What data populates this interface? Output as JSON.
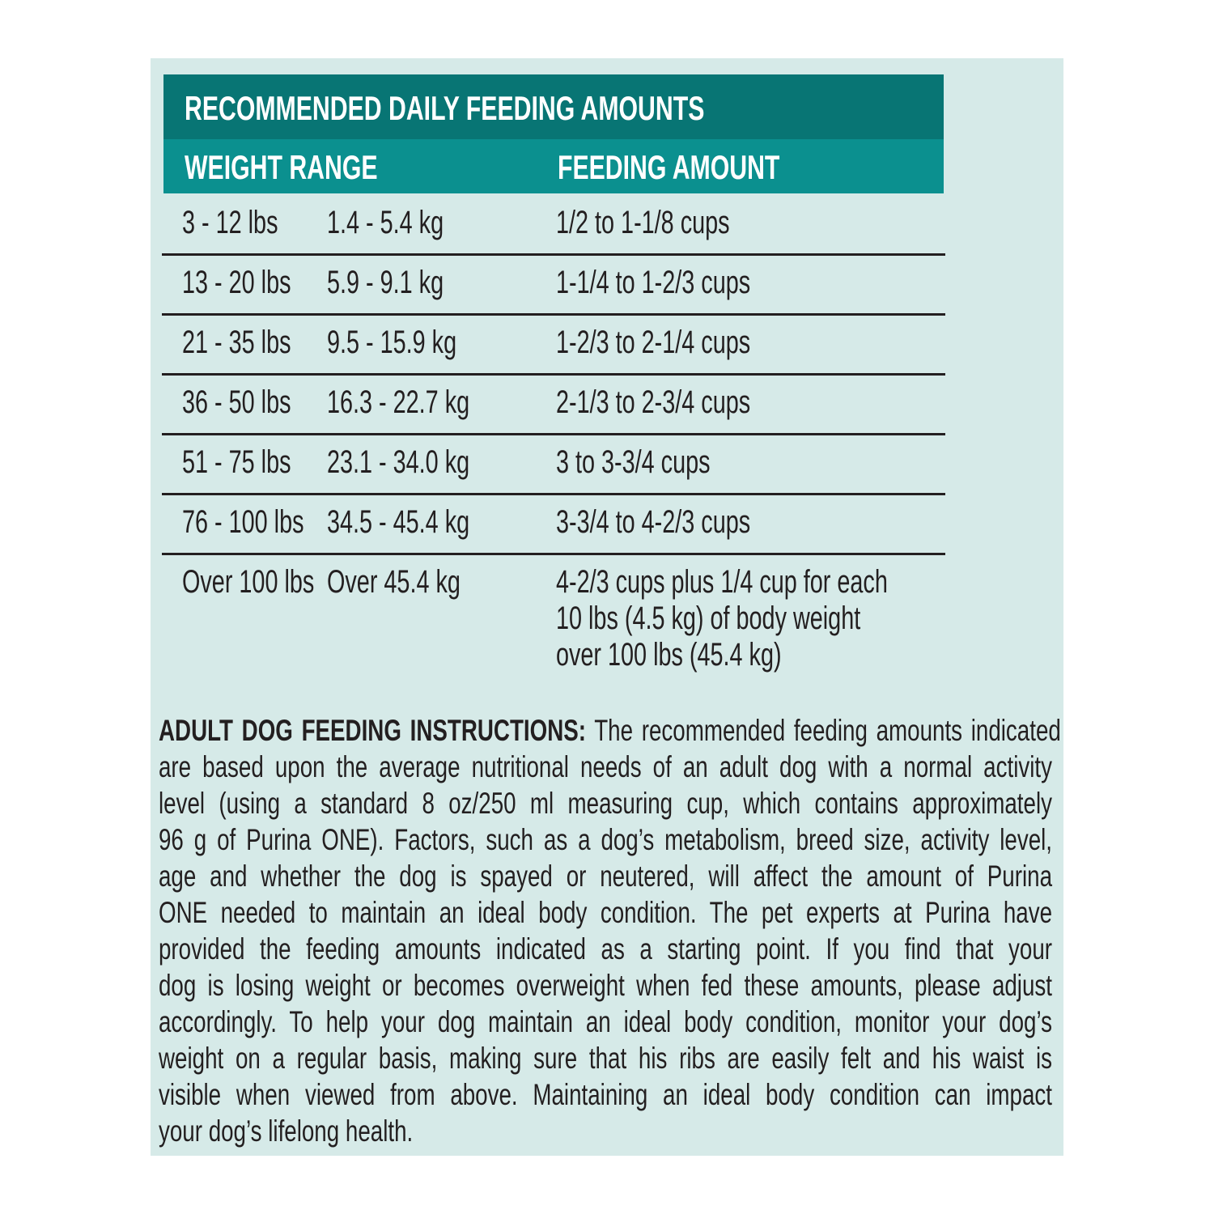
{
  "colors": {
    "background": "#d6eae8",
    "title_bar": "#087574",
    "header_bar": "#0b908f",
    "text": "#231f20"
  },
  "table": {
    "title": "RECOMMENDED DAILY FEEDING AMOUNTS",
    "headers": {
      "weight": "WEIGHT RANGE",
      "amount": "FEEDING AMOUNT"
    },
    "rows": [
      {
        "lbs": "3 - 12 lbs",
        "kg": "1.4 - 5.4 kg",
        "amount": "1/2 to 1-1/8 cups"
      },
      {
        "lbs": "13 - 20 lbs",
        "kg": "5.9 - 9.1 kg",
        "amount": "1-1/4 to 1-2/3 cups"
      },
      {
        "lbs": "21 - 35 lbs",
        "kg": "9.5 - 15.9 kg",
        "amount": "1-2/3 to 2-1/4 cups"
      },
      {
        "lbs": "36 - 50 lbs",
        "kg": "16.3 - 22.7 kg",
        "amount": "2-1/3 to 2-3/4 cups"
      },
      {
        "lbs": "51 - 75 lbs",
        "kg": "23.1 - 34.0 kg",
        "amount": "3 to 3-3/4 cups"
      },
      {
        "lbs": "76 - 100 lbs",
        "kg": "34.5 - 45.4 kg",
        "amount": "3-3/4 to 4-2/3 cups"
      },
      {
        "lbs": "Over 100 lbs",
        "kg": "Over 45.4 kg",
        "amount_lines": [
          "4-2/3 cups plus 1/4 cup for each",
          "10 lbs (4.5 kg) of body weight",
          "over 100 lbs (45.4 kg)"
        ]
      }
    ]
  },
  "instructions": {
    "heading": "ADULT DOG FEEDING INSTRUCTIONS:",
    "lines": [
      " The recommended feeding amounts indicated",
      "are based upon the average nutritional needs of an adult dog with a normal activity",
      "level (using a standard 8 oz/250 ml measuring cup, which contains approximately",
      "96 g of Purina ONE). Factors, such as a dog’s metabolism, breed size, activity level,",
      "age and whether the dog is spayed or neutered, will affect the amount of Purina",
      "ONE needed to maintain an ideal body condition. The pet experts at Purina have",
      "provided the feeding amounts indicated as a starting point. If you find that your",
      "dog is losing weight or becomes overweight when fed these amounts, please adjust",
      "accordingly. To help your dog maintain an ideal body condition, monitor your dog’s",
      "weight on a regular basis, making sure that his ribs are easily felt and his waist is",
      "visible when viewed from above. Maintaining an ideal body condition can impact",
      "your dog’s lifelong health."
    ]
  }
}
